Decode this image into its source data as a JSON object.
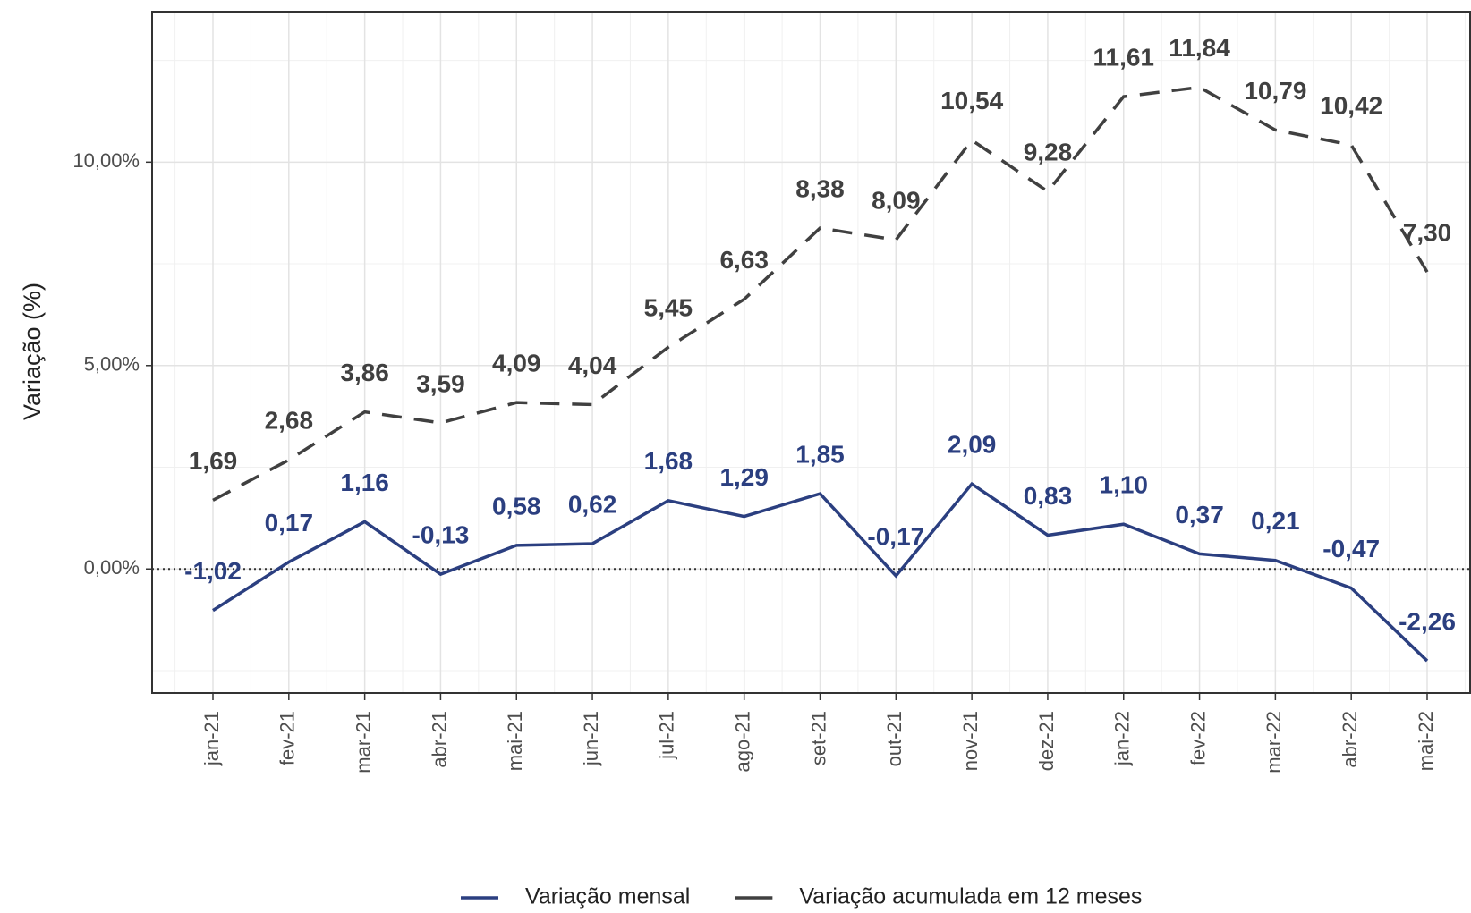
{
  "chart_data": {
    "type": "line",
    "y_label": "Variação (%)",
    "categories": [
      "jan-21",
      "fev-21",
      "mar-21",
      "abr-21",
      "mai-21",
      "jun-21",
      "jul-21",
      "ago-21",
      "set-21",
      "out-21",
      "nov-21",
      "dez-21",
      "jan-22",
      "fev-22",
      "mar-22",
      "abr-22",
      "mai-22"
    ],
    "series": [
      {
        "name": "Variação mensal",
        "color": "#2b3f80",
        "dash": false,
        "values": [
          -1.02,
          0.17,
          1.16,
          -0.13,
          0.58,
          0.62,
          1.68,
          1.29,
          1.85,
          -0.17,
          2.09,
          0.83,
          1.1,
          0.37,
          0.21,
          -0.47,
          -2.26
        ],
        "value_labels": [
          "-1,02",
          "0,17",
          "1,16",
          "-0,13",
          "0,58",
          "0,62",
          "1,68",
          "1,29",
          "1,85",
          "-0,17",
          "2,09",
          "0,83",
          "1,10",
          "0,37",
          "0,21",
          "-0,47",
          "-2,26"
        ]
      },
      {
        "name": "Variação acumulada em 12 meses",
        "color": "#404040",
        "dash": true,
        "values": [
          1.69,
          2.68,
          3.86,
          3.59,
          4.09,
          4.04,
          5.45,
          6.63,
          8.38,
          8.09,
          10.54,
          9.28,
          11.61,
          11.84,
          10.79,
          10.42,
          7.3
        ],
        "value_labels": [
          "1,69",
          "2,68",
          "3,86",
          "3,59",
          "4,09",
          "4,04",
          "5,45",
          "6,63",
          "8,38",
          "8,09",
          "10,54",
          "9,28",
          "11,61",
          "11,84",
          "10,79",
          "10,42",
          "7,30"
        ]
      }
    ],
    "ylim": [
      -3.05,
      13.7
    ],
    "yticks": [
      {
        "value": 0,
        "label": "0,00%"
      },
      {
        "value": 5,
        "label": "5,00%"
      },
      {
        "value": 10,
        "label": "10,00%"
      }
    ],
    "grid": true,
    "legend": "bottom"
  }
}
